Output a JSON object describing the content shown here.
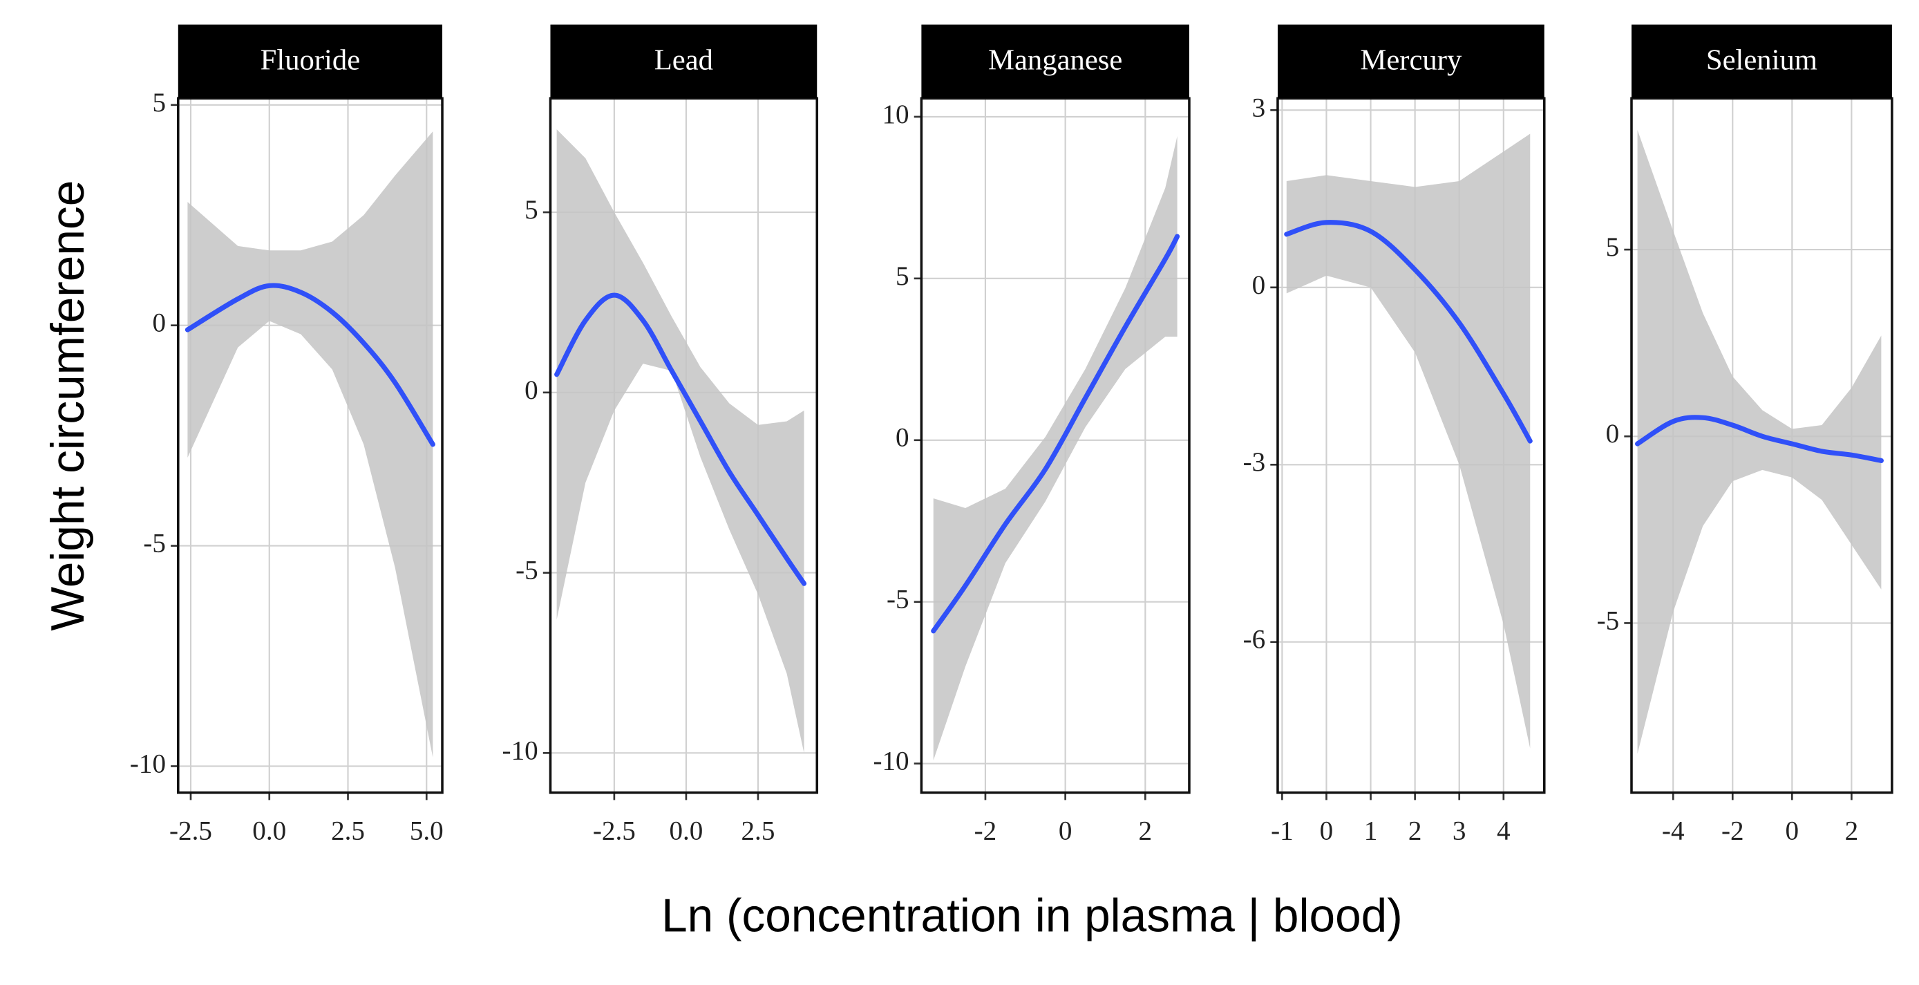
{
  "y_label": "Weight circumference",
  "x_label": "Ln (concentration in plasma | blood)",
  "chart_data": [
    {
      "type": "line",
      "title": "Fluoride",
      "color": "#3050f8",
      "band_color": "#c4c4c4",
      "grid": true,
      "x": [
        -2.6,
        -1,
        0,
        1,
        2,
        3,
        4,
        5.2
      ],
      "values": [
        -0.1,
        0.6,
        0.9,
        0.75,
        0.3,
        -0.4,
        -1.3,
        -2.7
      ],
      "lower": [
        -3,
        -0.5,
        0.1,
        -0.2,
        -1,
        -2.7,
        -5.5,
        -9.8
      ],
      "upper": [
        2.8,
        1.8,
        1.7,
        1.7,
        1.9,
        2.5,
        3.4,
        4.4
      ],
      "xlim": [
        -2.9,
        5.5
      ],
      "ylim": [
        -10.6,
        5.15
      ],
      "xticks": [
        -2.5,
        {
          "value": 0,
          "label": "0.0"
        },
        2.5,
        {
          "value": 5,
          "label": "5.0"
        }
      ],
      "yticks": [
        -10,
        -5,
        0,
        5
      ]
    },
    {
      "type": "line",
      "title": "Lead",
      "color": "#3050f8",
      "band_color": "#c4c4c4",
      "grid": true,
      "x": [
        -4.5,
        -3.5,
        -2.5,
        -1.5,
        -0.5,
        0.5,
        1.5,
        2.5,
        3.5,
        4.1
      ],
      "values": [
        0.5,
        2.0,
        2.7,
        2.0,
        0.6,
        -0.8,
        -2.2,
        -3.4,
        -4.6,
        -5.3
      ],
      "lower": [
        -6.3,
        -2.5,
        -0.5,
        0.8,
        0.6,
        -1.8,
        -3.8,
        -5.6,
        -7.8,
        -10
      ],
      "upper": [
        7.3,
        6.5,
        5,
        3.6,
        2.1,
        0.7,
        -0.3,
        -0.9,
        -0.8,
        -0.5
      ],
      "xlim": [
        -4.72,
        4.55
      ],
      "ylim": [
        -11.1,
        8.16
      ],
      "xticks": [
        -2.5,
        {
          "value": 0,
          "label": "0.0"
        },
        2.5
      ],
      "yticks": [
        -10,
        -5,
        0,
        5
      ]
    },
    {
      "type": "line",
      "title": "Manganese",
      "color": "#3050f8",
      "band_color": "#c4c4c4",
      "grid": true,
      "x": [
        -3.3,
        -2.5,
        -1.5,
        -0.5,
        0.5,
        1.5,
        2.5,
        2.8
      ],
      "values": [
        -5.9,
        -4.5,
        -2.6,
        -0.9,
        1.3,
        3.5,
        5.6,
        6.3
      ],
      "lower": [
        -9.9,
        -7,
        -3.8,
        -1.9,
        0.4,
        2.2,
        3.2,
        3.2
      ],
      "upper": [
        -1.8,
        -2.1,
        -1.5,
        0.1,
        2.2,
        4.7,
        7.8,
        9.4
      ],
      "xlim": [
        -3.6,
        3.1
      ],
      "ylim": [
        -10.9,
        10.57
      ],
      "xticks": [
        -2,
        0,
        2
      ],
      "yticks": [
        -10,
        -5,
        0,
        5,
        10
      ]
    },
    {
      "type": "line",
      "title": "Mercury",
      "color": "#3050f8",
      "band_color": "#c4c4c4",
      "grid": true,
      "x": [
        -0.9,
        0,
        1,
        2,
        3,
        4,
        4.6
      ],
      "values": [
        0.9,
        1.1,
        0.95,
        0.3,
        -0.6,
        -1.8,
        -2.6
      ],
      "lower": [
        -0.1,
        0.2,
        0,
        -1.1,
        -3,
        -5.7,
        -7.8
      ],
      "upper": [
        1.8,
        1.9,
        1.8,
        1.7,
        1.8,
        2.3,
        2.6
      ],
      "xlim": [
        -1.1,
        4.92
      ],
      "ylim": [
        -8.55,
        3.2
      ],
      "xticks": [
        -1,
        0,
        1,
        2,
        3,
        4
      ],
      "yticks": [
        -6,
        -3,
        0,
        3
      ]
    },
    {
      "type": "line",
      "title": "Selenium",
      "color": "#3050f8",
      "band_color": "#c4c4c4",
      "grid": true,
      "x": [
        -5.2,
        -4,
        -3,
        -2,
        -1,
        0,
        1,
        2,
        3
      ],
      "values": [
        -0.2,
        0.4,
        0.5,
        0.3,
        0,
        -0.2,
        -0.4,
        -0.5,
        -0.65
      ],
      "lower": [
        -8.5,
        -4.7,
        -2.4,
        -1.2,
        -0.9,
        -1.1,
        -1.7,
        -2.9,
        -4.1
      ],
      "upper": [
        8.2,
        5.5,
        3.3,
        1.6,
        0.7,
        0.2,
        0.3,
        1.3,
        2.7
      ],
      "xlim": [
        -5.4,
        3.36
      ],
      "ylim": [
        -9.54,
        9.05
      ],
      "xticks": [
        -4,
        -2,
        0,
        2
      ],
      "yticks": [
        -5,
        0,
        5
      ]
    }
  ]
}
